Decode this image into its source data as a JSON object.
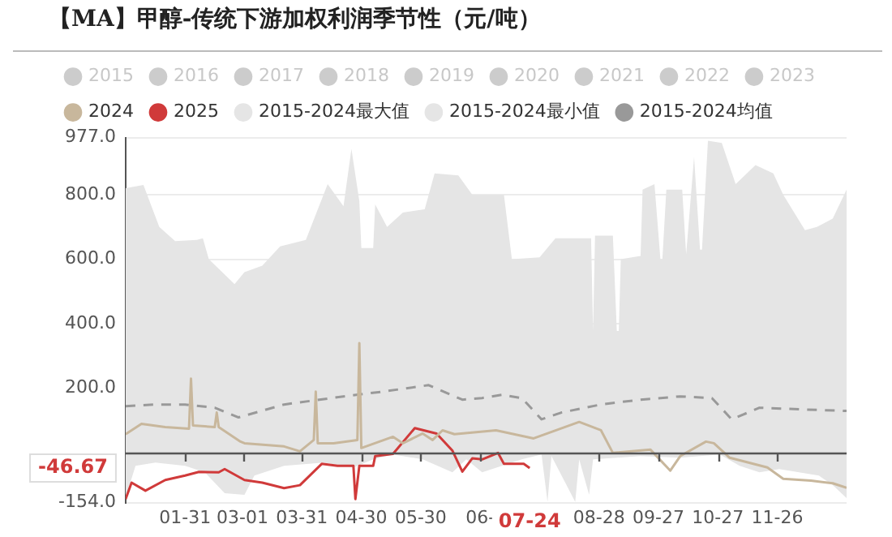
{
  "chart_data": {
    "type": "line",
    "title": "【MA】甲醇-传统下游加权利润季节性（元/吨）",
    "xlim": [
      "--01-01",
      "--12-31"
    ],
    "xticks": [
      {
        "value": "--01-31",
        "label": "01-31"
      },
      {
        "value": "--03-01",
        "label": "03-01"
      },
      {
        "value": "--03-31",
        "label": "03-31"
      },
      {
        "value": "--04-30",
        "label": "04-30"
      },
      {
        "value": "--05-30",
        "label": "05-30"
      },
      {
        "value": "--06-29",
        "label": "06-"
      },
      {
        "value": "--08-28",
        "label": "08-28"
      },
      {
        "value": "--09-27",
        "label": "09-27"
      },
      {
        "value": "--10-27",
        "label": "10-27"
      },
      {
        "value": "--11-26",
        "label": "11-26"
      }
    ],
    "ylim": [
      -154,
      977
    ],
    "yticks": [
      {
        "value": -154,
        "label": "-154.0"
      },
      {
        "value": 0,
        "label": null
      },
      {
        "value": 200,
        "label": "200.0"
      },
      {
        "value": 400,
        "label": "400.0"
      },
      {
        "value": 600,
        "label": "600.0"
      },
      {
        "value": 800,
        "label": "800.0"
      },
      {
        "value": 977,
        "label": "977.0"
      }
    ],
    "grid": "y",
    "legend": "top",
    "marker": "none",
    "ref_lines": [
      {
        "axis": "y",
        "value": 0,
        "color": "#555555"
      }
    ],
    "annotations": [
      "-46.67",
      "07-24"
    ],
    "series": [
      {
        "name": "2015",
        "color": "#cccccc"
      },
      {
        "name": "2016",
        "color": "#cccccc"
      },
      {
        "name": "2017",
        "color": "#cccccc"
      },
      {
        "name": "2018",
        "color": "#cccccc"
      },
      {
        "name": "2019",
        "color": "#cccccc"
      },
      {
        "name": "2020",
        "color": "#cccccc"
      },
      {
        "name": "2021",
        "color": "#cccccc"
      },
      {
        "name": "2022",
        "color": "#cccccc"
      },
      {
        "name": "2023",
        "color": "#cccccc"
      },
      {
        "name": "2024",
        "color": "#c8b79c",
        "x": [
          "--01-01",
          "--01-09",
          "--01-21",
          "--02-02",
          "--02-03",
          "--02-04",
          "--02-15",
          "--02-16",
          "--02-17",
          "--02-28",
          "--03-02",
          "--03-22",
          "--03-30",
          "--04-06",
          "--04-07",
          "--04-08",
          "--04-16",
          "--04-28",
          "--04-29",
          "--04-30",
          "--05-16",
          "--05-21",
          "--05-31",
          "--06-05",
          "--06-10",
          "--06-16",
          "--07-07",
          "--07-26",
          "--08-18",
          "--08-29",
          "--09-04",
          "--09-23",
          "--10-03",
          "--10-08",
          "--10-21",
          "--10-25",
          "--11-02",
          "--11-21",
          "--11-29",
          "--12-13",
          "--12-24",
          "--12-31"
        ],
        "values": [
          58,
          90,
          80,
          75,
          230,
          85,
          80,
          125,
          80,
          35,
          30,
          20,
          5,
          40,
          190,
          30,
          30,
          40,
          340,
          15,
          50,
          30,
          60,
          40,
          70,
          58,
          70,
          45,
          96,
          70,
          0,
          10,
          -55,
          -10,
          35,
          30,
          -15,
          -45,
          -80,
          -86,
          -94,
          -108
        ]
      },
      {
        "name": "2025",
        "color": "#d03a3a",
        "x": [
          "--01-01",
          "--01-04",
          "--01-11",
          "--01-21",
          "--01-31",
          "--02-07",
          "--02-17",
          "--02-20",
          "--03-02",
          "--03-11",
          "--03-22",
          "--03-30",
          "--04-10",
          "--04-18",
          "--04-26",
          "--04-27",
          "--04-29",
          "--05-06",
          "--05-07",
          "--05-16",
          "--05-27",
          "--06-07",
          "--06-15",
          "--06-20",
          "--06-25",
          "--06-30",
          "--07-08",
          "--07-11",
          "--07-21",
          "--07-24"
        ],
        "values": [
          -143,
          -92,
          -117,
          -84,
          -70,
          -59,
          -60,
          -50,
          -84,
          -92,
          -109,
          -100,
          -34,
          -40,
          -40,
          -143,
          -40,
          -40,
          -10,
          -3,
          77,
          60,
          7,
          -58,
          -17,
          -20,
          0,
          -34,
          -34,
          -46.67
        ]
      },
      {
        "name": "2015-2024最大值",
        "type": "area",
        "color": "#e5e5e5",
        "x": [
          "--01-01",
          "--01-10",
          "--01-18",
          "--01-26",
          "--02-06",
          "--02-09",
          "--02-12",
          "--02-25",
          "--03-02",
          "--03-11",
          "--03-20",
          "--04-02",
          "--04-13",
          "--04-21",
          "--04-25",
          "--04-29",
          "--04-30",
          "--05-06",
          "--05-07",
          "--05-13",
          "--05-21",
          "--06-01",
          "--06-06",
          "--06-18",
          "--06-25",
          "--07-11",
          "--07-15",
          "--07-29",
          "--08-06",
          "--08-24",
          "--08-25",
          "--08-26",
          "--09-04",
          "--09-06",
          "--09-07",
          "--09-08",
          "--09-18",
          "--09-19",
          "--09-25",
          "--09-28",
          "--09-29",
          "--10-01",
          "--10-09",
          "--10-11",
          "--10-15",
          "--10-18",
          "--10-19",
          "--10-22",
          "--10-29",
          "--11-05",
          "--11-15",
          "--11-24",
          "--11-29",
          "--12-10",
          "--12-16",
          "--12-24",
          "--12-31"
        ],
        "values": [
          820,
          830,
          700,
          656,
          660,
          665,
          600,
          523,
          560,
          580,
          640,
          660,
          833,
          764,
          942,
          780,
          635,
          635,
          770,
          700,
          745,
          755,
          866,
          860,
          800,
          800,
          600,
          606,
          665,
          665,
          378,
          673,
          673,
          378,
          378,
          600,
          610,
          816,
          833,
          600,
          600,
          816,
          816,
          615,
          917,
          630,
          630,
          967,
          960,
          833,
          892,
          866,
          800,
          690,
          700,
          726,
          816
        ]
      },
      {
        "name": "2015-2024最小值",
        "type": "area",
        "color": "#e5e5e5",
        "x": [
          "--01-01",
          "--01-06",
          "--01-16",
          "--01-31",
          "--02-10",
          "--02-20",
          "--03-02",
          "--03-07",
          "--03-22",
          "--04-11",
          "--04-26",
          "--05-06",
          "--05-16",
          "--05-31",
          "--06-15",
          "--06-22",
          "--06-30",
          "--07-10",
          "--07-20",
          "--07-30",
          "--08-02",
          "--08-04",
          "--08-16",
          "--08-18",
          "--08-23",
          "--08-25",
          "--09-18",
          "--10-08",
          "--10-28",
          "--11-07",
          "--11-17",
          "--11-27",
          "--12-07",
          "--12-17",
          "--12-24",
          "--12-31"
        ],
        "values": [
          -138,
          -40,
          -30,
          -40,
          -60,
          -125,
          -130,
          -70,
          -40,
          -30,
          -45,
          -20,
          -5,
          -20,
          -60,
          -20,
          -60,
          -40,
          -20,
          -5,
          -152,
          -10,
          -152,
          -20,
          -130,
          -20,
          -10,
          -15,
          -5,
          -40,
          -60,
          -50,
          -60,
          -70,
          -100,
          -140
        ]
      },
      {
        "name": "2015-2024均值",
        "color": "#999999",
        "line_style": "dashed",
        "x": [
          "--01-01",
          "--01-16",
          "--01-31",
          "--02-15",
          "--02-27",
          "--03-22",
          "--04-21",
          "--05-11",
          "--06-03",
          "--06-20",
          "--06-30",
          "--07-10",
          "--07-20",
          "--07-30",
          "--08-09",
          "--08-29",
          "--09-18",
          "--10-08",
          "--10-24",
          "--11-03",
          "--11-17",
          "--12-07",
          "--12-31"
        ],
        "values": [
          145,
          150,
          150,
          140,
          110,
          150,
          175,
          190,
          210,
          165,
          170,
          180,
          170,
          104,
          125,
          150,
          165,
          175,
          170,
          104,
          140,
          135,
          130
        ]
      }
    ]
  }
}
